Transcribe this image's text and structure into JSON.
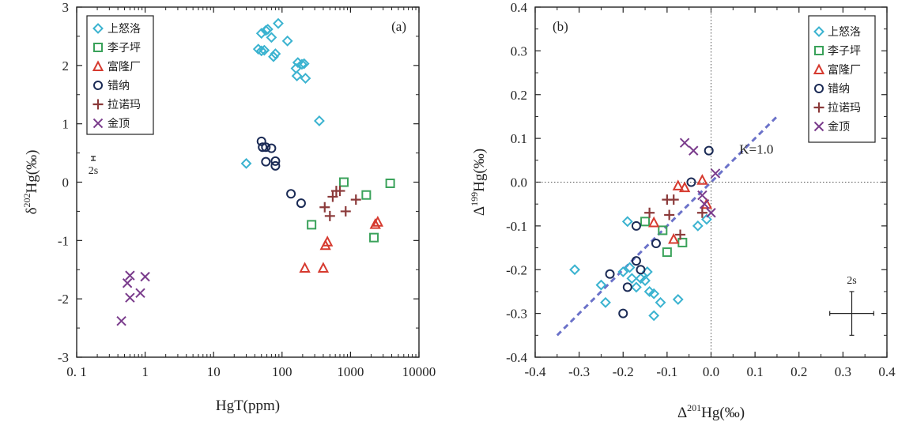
{
  "chart_data": [
    {
      "panel_label": "(a)",
      "type": "scatter",
      "xlabel": "HgT(ppm)",
      "ylabel": "δ202Hg(‰)",
      "ylabel_parts": {
        "main": "δ",
        "sup": "202",
        "rest": "Hg(‰)"
      },
      "x_scale": "log",
      "xlim": [
        0.1,
        10000
      ],
      "ylim": [
        -3,
        3
      ],
      "x_ticks": [
        0.1,
        1,
        10,
        100,
        1000,
        10000
      ],
      "x_tick_labels": [
        "0. 1",
        "1",
        "10",
        "100",
        "1000",
        "10000"
      ],
      "y_ticks": [
        -3,
        -2,
        -1,
        0,
        1,
        2,
        3
      ],
      "y_tick_labels": [
        "-3",
        "-2",
        "-1",
        "0",
        "1",
        "2",
        "3"
      ],
      "grid": false,
      "legend_position": "top-left",
      "error_bar_label": "2s",
      "series": [
        {
          "name": "上怒洛",
          "marker": "diamond",
          "color": "#3bb3d0",
          "points": [
            [
              30,
              0.32
            ],
            [
              50,
              2.55
            ],
            [
              58,
              2.6
            ],
            [
              62,
              2.62
            ],
            [
              88,
              2.72
            ],
            [
              70,
              2.48
            ],
            [
              120,
              2.42
            ],
            [
              45,
              2.28
            ],
            [
              50,
              2.25
            ],
            [
              55,
              2.26
            ],
            [
              80,
              2.2
            ],
            [
              75,
              2.15
            ],
            [
              170,
              2.05
            ],
            [
              195,
              2.02
            ],
            [
              210,
              2.03
            ],
            [
              160,
              1.95
            ],
            [
              165,
              1.82
            ],
            [
              220,
              1.78
            ],
            [
              350,
              1.05
            ]
          ]
        },
        {
          "name": "李子坪",
          "marker": "square",
          "color": "#3aa25a",
          "points": [
            [
              270,
              -0.73
            ],
            [
              800,
              0.0
            ],
            [
              1700,
              -0.22
            ],
            [
              2200,
              -0.95
            ],
            [
              3800,
              -0.02
            ]
          ]
        },
        {
          "name": "富隆厂",
          "marker": "triangle",
          "color": "#d63a2f",
          "points": [
            [
              215,
              -1.47
            ],
            [
              400,
              -1.47
            ],
            [
              430,
              -1.08
            ],
            [
              460,
              -1.02
            ],
            [
              2300,
              -0.72
            ],
            [
              2500,
              -0.68
            ]
          ]
        },
        {
          "name": "错纳",
          "marker": "circle",
          "color": "#1a2a55",
          "points": [
            [
              50,
              0.7
            ],
            [
              52,
              0.6
            ],
            [
              58,
              0.6
            ],
            [
              70,
              0.58
            ],
            [
              58,
              0.35
            ],
            [
              80,
              0.36
            ],
            [
              80,
              0.28
            ],
            [
              135,
              -0.2
            ],
            [
              190,
              -0.36
            ]
          ]
        },
        {
          "name": "拉诺玛",
          "marker": "plus",
          "color": "#8b3a3a",
          "points": [
            [
              420,
              -0.43
            ],
            [
              500,
              -0.58
            ],
            [
              550,
              -0.25
            ],
            [
              620,
              -0.15
            ],
            [
              700,
              -0.15
            ],
            [
              850,
              -0.5
            ],
            [
              1200,
              -0.3
            ]
          ]
        },
        {
          "name": "金顶",
          "marker": "x",
          "color": "#7a3c8c",
          "points": [
            [
              0.45,
              -2.38
            ],
            [
              0.55,
              -1.73
            ],
            [
              0.6,
              -1.6
            ],
            [
              0.6,
              -1.98
            ],
            [
              0.85,
              -1.9
            ],
            [
              1.0,
              -1.62
            ]
          ]
        }
      ]
    },
    {
      "panel_label": "(b)",
      "type": "scatter",
      "xlabel": "Δ201Hg(‰)",
      "xlabel_parts": {
        "main": "Δ",
        "sup": "201",
        "rest": "Hg(‰)"
      },
      "ylabel": "Δ199Hg(‰)",
      "ylabel_parts": {
        "main": "Δ",
        "sup": "199",
        "rest": "Hg(‰)"
      },
      "xlim": [
        -0.4,
        0.4
      ],
      "ylim": [
        -0.4,
        0.4
      ],
      "x_ticks": [
        -0.4,
        -0.3,
        -0.2,
        -0.1,
        0,
        0.1,
        0.2,
        0.3,
        0.4
      ],
      "x_tick_labels": [
        "-0.4",
        "-0.3",
        "-0.2",
        "-0.1",
        "0.0",
        "0.1",
        "0.2",
        "0.3",
        "0.4"
      ],
      "y_ticks": [
        -0.4,
        -0.3,
        -0.2,
        -0.1,
        0,
        0.1,
        0.2,
        0.3,
        0.4
      ],
      "y_tick_labels": [
        "-0.4",
        "-0.3",
        "-0.2",
        "-0.1",
        "0.0",
        "0.1",
        "0.2",
        "0.3",
        "0.4"
      ],
      "grid": false,
      "zero_lines": true,
      "legend_position": "top-right",
      "reference_line": {
        "label": "K=1.0",
        "slope": 1.0,
        "from": [
          -0.35,
          -0.35
        ],
        "to": [
          0.15,
          0.15
        ]
      },
      "error_cross": {
        "label": "2s",
        "x": 0.32,
        "y": -0.3,
        "dx": 0.05,
        "dy": 0.05
      },
      "series": [
        {
          "name": "上怒洛",
          "marker": "diamond",
          "color": "#3bb3d0",
          "points": [
            [
              -0.31,
              -0.2
            ],
            [
              -0.25,
              -0.235
            ],
            [
              -0.24,
              -0.275
            ],
            [
              -0.2,
              -0.205
            ],
            [
              -0.19,
              -0.09
            ],
            [
              -0.185,
              -0.195
            ],
            [
              -0.18,
              -0.22
            ],
            [
              -0.17,
              -0.24
            ],
            [
              -0.16,
              -0.22
            ],
            [
              -0.15,
              -0.225
            ],
            [
              -0.145,
              -0.205
            ],
            [
              -0.14,
              -0.25
            ],
            [
              -0.13,
              -0.255
            ],
            [
              -0.13,
              -0.305
            ],
            [
              -0.115,
              -0.275
            ],
            [
              -0.075,
              -0.268
            ],
            [
              -0.03,
              -0.1
            ],
            [
              -0.01,
              -0.085
            ]
          ]
        },
        {
          "name": "李子坪",
          "marker": "square",
          "color": "#3aa25a",
          "points": [
            [
              -0.15,
              -0.09
            ],
            [
              -0.11,
              -0.11
            ],
            [
              -0.1,
              -0.16
            ],
            [
              -0.065,
              -0.138
            ]
          ]
        },
        {
          "name": "富隆厂",
          "marker": "triangle",
          "color": "#d63a2f",
          "points": [
            [
              -0.13,
              -0.092
            ],
            [
              -0.085,
              -0.13
            ],
            [
              -0.075,
              -0.008
            ],
            [
              -0.06,
              -0.012
            ],
            [
              -0.02,
              0.005
            ],
            [
              -0.01,
              -0.05
            ]
          ]
        },
        {
          "name": "错纳",
          "marker": "circle",
          "color": "#1a2a55",
          "points": [
            [
              -0.23,
              -0.21
            ],
            [
              -0.2,
              -0.3
            ],
            [
              -0.19,
              -0.24
            ],
            [
              -0.17,
              -0.1
            ],
            [
              -0.17,
              -0.18
            ],
            [
              -0.16,
              -0.2
            ],
            [
              -0.125,
              -0.14
            ],
            [
              -0.045,
              0.0
            ],
            [
              -0.005,
              0.072
            ]
          ]
        },
        {
          "name": "拉诺玛",
          "marker": "plus",
          "color": "#8b3a3a",
          "points": [
            [
              -0.14,
              -0.07
            ],
            [
              -0.1,
              -0.04
            ],
            [
              -0.095,
              -0.075
            ],
            [
              -0.085,
              -0.04
            ],
            [
              -0.07,
              -0.12
            ],
            [
              -0.02,
              -0.07
            ]
          ]
        },
        {
          "name": "金顶",
          "marker": "x",
          "color": "#7a3c8c",
          "points": [
            [
              -0.06,
              0.09
            ],
            [
              -0.04,
              0.072
            ],
            [
              -0.02,
              -0.03
            ],
            [
              -0.015,
              -0.05
            ],
            [
              0.0,
              -0.07
            ],
            [
              0.01,
              0.02
            ]
          ]
        }
      ]
    }
  ]
}
